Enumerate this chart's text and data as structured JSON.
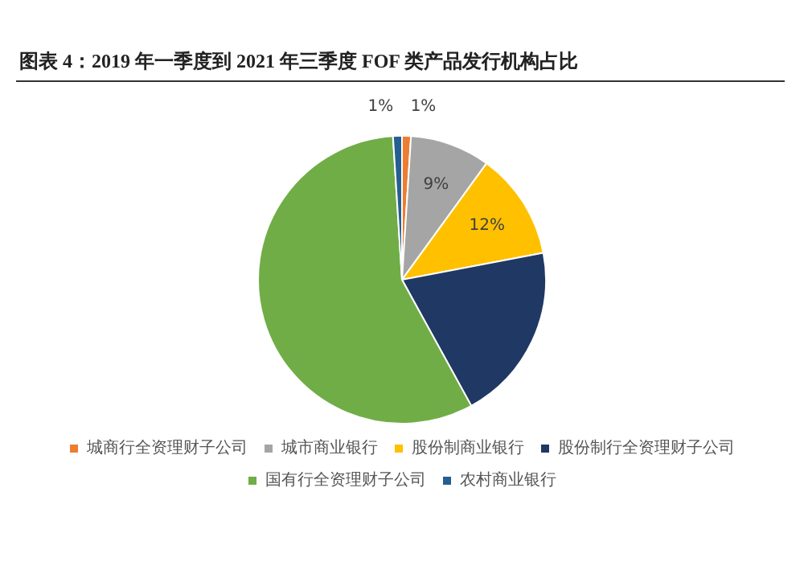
{
  "chart_data": {
    "type": "pie",
    "title": "图表 4：2019 年一季度到 2021 年三季度 FOF 类产品发行机构占比",
    "categories": [
      "城商行全资理财子公司",
      "城市商业银行",
      "股份制商业银行",
      "股份制行全资理财子公司",
      "国有行全资理财子公司",
      "农村商业银行"
    ],
    "values": [
      1,
      9,
      12,
      20,
      57,
      1
    ],
    "colors": [
      "#ed7d31",
      "#a5a5a5",
      "#ffc000",
      "#203864",
      "#70ad47",
      "#255e91"
    ],
    "value_labels": [
      "1%",
      "9%",
      "12%",
      null,
      null,
      "1%"
    ],
    "legend": "bottom"
  }
}
